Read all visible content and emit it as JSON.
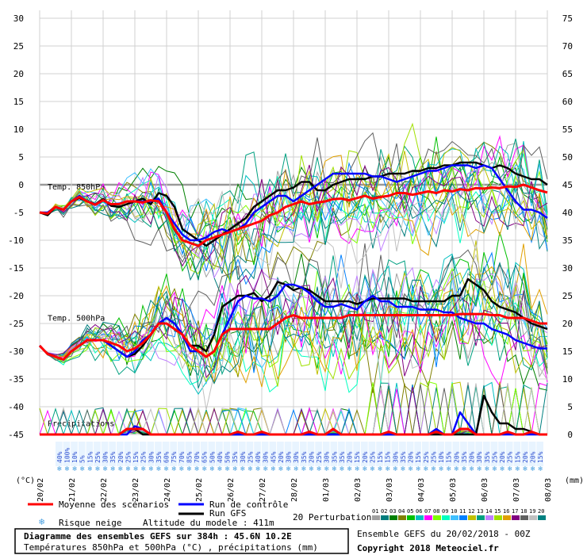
{
  "chart_data": {
    "type": "line",
    "title": "Diagramme des ensembles GEFS sur 384h : 45.6N 10.2E",
    "subtitle": "Températures 850hPa et 500hPa (°C) , précipitations (mm)",
    "x_dates": [
      "20/02",
      "21/02",
      "22/02",
      "23/02",
      "24/02",
      "25/02",
      "26/02",
      "27/02",
      "28/02",
      "01/03",
      "02/03",
      "03/03",
      "04/03",
      "05/03",
      "06/03",
      "07/03",
      "08/03"
    ],
    "left_axis": {
      "unit": "(°C)",
      "ticks": [
        30,
        25,
        20,
        15,
        10,
        5,
        0,
        -5,
        -10,
        -15,
        -20,
        -25,
        -30,
        -35,
        -40,
        -45
      ],
      "range": [
        -45,
        30
      ]
    },
    "right_axis": {
      "unit": "(mm)",
      "ticks": [
        75,
        70,
        65,
        60,
        55,
        50,
        45,
        40,
        35,
        30,
        25,
        20,
        15,
        10,
        5,
        0
      ],
      "range": [
        0,
        75
      ]
    },
    "section_labels": {
      "t850": "Temp. 850hPa",
      "t500": "Temp. 500hPa",
      "precip": "Précipitations"
    },
    "x_hours_step": 6,
    "series": [
      {
        "name": "Moyenne des scénarios",
        "color": "#ff0000",
        "t850": [
          -5,
          -5.2,
          -4,
          -4.5,
          -3,
          -2.2,
          -3,
          -3.6,
          -2.8,
          -3.5,
          -3.5,
          -3,
          -3,
          -3.2,
          -2.8,
          -3,
          -5,
          -8,
          -10,
          -10.5,
          -11,
          -10,
          -9.5,
          -9,
          -8.5,
          -8,
          -7.5,
          -7,
          -6.5,
          -5.5,
          -5,
          -4,
          -3.5,
          -3,
          -3.5,
          -3.2,
          -3,
          -2.6,
          -2.5,
          -2.8,
          -2.4,
          -2,
          -2.5,
          -2.2,
          -2,
          -1.5,
          -1.5,
          -1.8,
          -1.5,
          -1.2,
          -1.5,
          -1,
          -1.2,
          -0.8,
          -1,
          -0.6,
          -0.7,
          -0.5,
          -0.6,
          -0.3,
          -0.4,
          0,
          -0.5,
          -1,
          -1.4
        ],
        "t500": [
          -29,
          -30.5,
          -31,
          -31.5,
          -30,
          -29,
          -28,
          -28,
          -28,
          -28.5,
          -29,
          -30,
          -29.5,
          -28.5,
          -27,
          -25,
          -25,
          -26,
          -27,
          -29,
          -30,
          -31,
          -30,
          -27,
          -26,
          -26,
          -26,
          -26,
          -26,
          -26,
          -25,
          -24,
          -23.5,
          -24,
          -24,
          -24,
          -24,
          -24,
          -24,
          -23.5,
          -23.5,
          -23.5,
          -23.5,
          -23.5,
          -23.5,
          -23.5,
          -23.5,
          -23.5,
          -23.5,
          -23.5,
          -23.5,
          -23.5,
          -23.5,
          -23.3,
          -23.3,
          -23.3,
          -23.3,
          -23.5,
          -23.5,
          -24,
          -24,
          -24,
          -24.5,
          -25,
          -25
        ],
        "precip": [
          0,
          0,
          0,
          0,
          0,
          0,
          0,
          0,
          0,
          0,
          0,
          1,
          1,
          1,
          0,
          0,
          0,
          0,
          0,
          0,
          0,
          0,
          0,
          0,
          0,
          0.5,
          0,
          0,
          0.5,
          0,
          0,
          0,
          0,
          0,
          0.5,
          0,
          0,
          1,
          0,
          0,
          0,
          0,
          0,
          0,
          0.5,
          0,
          0,
          0,
          0,
          0,
          0.5,
          0,
          0,
          1,
          1,
          0,
          0,
          0,
          0,
          0.5,
          0,
          0,
          0.5,
          0,
          0
        ]
      },
      {
        "name": "Run de contrôle",
        "color": "#0000ff",
        "t850": [
          -5,
          -5,
          -4,
          -4.5,
          -3,
          -2,
          -3,
          -3.5,
          -2.8,
          -3.5,
          -3.4,
          -3,
          -3,
          -3,
          -3,
          -2.5,
          -5,
          -7,
          -9,
          -10,
          -10,
          -9.5,
          -8.5,
          -8,
          -8.5,
          -8,
          -7,
          -5,
          -4,
          -3,
          -2,
          -2,
          -3,
          -2,
          -1,
          0,
          1,
          2,
          2,
          2,
          2,
          2,
          1.5,
          1.5,
          1,
          0.5,
          1,
          1.5,
          2,
          2.5,
          2.5,
          3,
          3.5,
          3.5,
          3.5,
          3,
          3.5,
          3,
          1,
          -1,
          -3,
          -4.5,
          -4.5,
          -5,
          -6
        ],
        "t500": [
          -29,
          -30.5,
          -31,
          -31.5,
          -30,
          -29,
          -28,
          -28,
          -28,
          -29,
          -30,
          -31,
          -30,
          -28,
          -27,
          -25,
          -24,
          -25,
          -27,
          -30,
          -30,
          -31,
          -30,
          -27,
          -24,
          -21,
          -20,
          -20.5,
          -20.5,
          -21,
          -20,
          -18,
          -18,
          -18.5,
          -19.5,
          -21,
          -22,
          -22,
          -21.5,
          -22,
          -22.5,
          -21,
          -20,
          -21,
          -21,
          -22,
          -22,
          -22,
          -22.5,
          -22.5,
          -22.5,
          -23,
          -23,
          -24,
          -24.5,
          -25,
          -25,
          -26,
          -26.5,
          -27,
          -28,
          -28.5,
          -29,
          -29.5,
          -29.5
        ],
        "precip": [
          0,
          0,
          0,
          0,
          0,
          0,
          0,
          0,
          0,
          0,
          0,
          0,
          1.5,
          1,
          0,
          0,
          0,
          0,
          0,
          0,
          0,
          0,
          0,
          0,
          0,
          0,
          0,
          0,
          0,
          0,
          0,
          0,
          0,
          0,
          0,
          0,
          0,
          0,
          0,
          0,
          0,
          0,
          0,
          0,
          0,
          0,
          0,
          0,
          0,
          0,
          1,
          0,
          0,
          4,
          2,
          0,
          0,
          0,
          0,
          0,
          0,
          0,
          0,
          0,
          0
        ]
      },
      {
        "name": "Run GFS",
        "color": "#000000",
        "t850": [
          -5,
          -5.5,
          -4,
          -4.5,
          -3,
          -2.4,
          -3,
          -3.5,
          -2.6,
          -3.8,
          -4,
          -3.5,
          -3,
          -2.5,
          -3.5,
          -1.5,
          -2,
          -4,
          -8,
          -9,
          -10,
          -11,
          -10,
          -9,
          -8,
          -7,
          -6,
          -4,
          -3,
          -2,
          -1,
          -1,
          -0.5,
          0.5,
          0.5,
          -1,
          -1,
          0,
          0.5,
          1,
          1,
          1,
          1.5,
          1.5,
          2,
          2,
          2,
          2.5,
          2.5,
          3,
          3,
          3.5,
          3.5,
          4,
          4,
          4,
          3.5,
          3,
          3.5,
          3,
          2,
          1.5,
          1,
          1,
          0
        ],
        "t500": [
          -29,
          -30.5,
          -31,
          -31.5,
          -30,
          -29,
          -28,
          -28,
          -28,
          -29,
          -30,
          -31,
          -30.5,
          -29,
          -27,
          -25,
          -24,
          -25,
          -27,
          -29,
          -29,
          -30,
          -27,
          -22,
          -21,
          -20,
          -20,
          -19.5,
          -21,
          -20,
          -17.5,
          -18,
          -19,
          -18.5,
          -19,
          -20,
          -21,
          -21,
          -21,
          -21,
          -21.5,
          -21,
          -20.5,
          -20.5,
          -20.5,
          -20.5,
          -20.5,
          -21,
          -21,
          -21,
          -21,
          -21,
          -20,
          -20,
          -17,
          -18,
          -19,
          -21,
          -22,
          -22.5,
          -23,
          -24,
          -25,
          -25.5,
          -26
        ],
        "precip": [
          0,
          0,
          0,
          0,
          0,
          0,
          0,
          0,
          0,
          0,
          0,
          1,
          1,
          0,
          0,
          0,
          0,
          0,
          0,
          0,
          0,
          0,
          0,
          0,
          0,
          0,
          0,
          0,
          0,
          0,
          0,
          0,
          0,
          0,
          0,
          0,
          0,
          0,
          0,
          0,
          0,
          0,
          0,
          0,
          0,
          0,
          0,
          0,
          0,
          0,
          0,
          0,
          0,
          0,
          0,
          0,
          7,
          4,
          2,
          2,
          1,
          1,
          0.5,
          0,
          0
        ]
      }
    ],
    "perturbations": {
      "count": 20,
      "labels": [
        "01",
        "02",
        "03",
        "04",
        "05",
        "06",
        "07",
        "08",
        "09",
        "10",
        "11",
        "12",
        "13",
        "14",
        "15",
        "16",
        "17",
        "18",
        "19",
        "20"
      ],
      "colors": [
        "#a0a0a0",
        "#007c7c",
        "#008000",
        "#808000",
        "#00c000",
        "#00c0c0",
        "#ff00ff",
        "#80ff00",
        "#00ffc0",
        "#40c0ff",
        "#0080ff",
        "#c0c000",
        "#00a080",
        "#c080ff",
        "#a0e000",
        "#e0a000",
        "#800080",
        "#606060",
        "#c0c0c0",
        "#008080"
      ]
    },
    "snow_risk_percent": [
      "40%",
      "100%",
      "10%",
      "5%",
      "15%",
      "25%",
      "30%",
      "35%",
      "20%",
      "25%",
      "15%",
      "25%",
      "30%",
      "35%",
      "60%",
      "75%",
      "70%",
      "85%",
      "70%",
      "65%",
      "50%",
      "40%",
      "50%",
      "35%",
      "30%",
      "25%",
      "40%",
      "30%",
      "45%",
      "20%",
      "30%",
      "30%",
      "35%",
      "20%",
      "25%",
      "30%",
      "35%",
      "35%",
      "20%",
      "15%",
      "20%",
      "25%",
      "15%",
      "15%",
      "30%",
      "35%",
      "20%",
      "15%",
      "25%",
      "25%",
      "10%",
      "15%",
      "20%",
      "35%",
      "20%",
      "30%",
      "35%",
      "25%",
      "20%",
      "25%",
      "15%",
      "20%",
      "20%",
      "15%"
    ]
  },
  "legend": {
    "mean": "Moyenne des scénarios",
    "control": "Run de contrôle",
    "gfs": "Run GFS",
    "perturbations": "20 Perturbations",
    "snow_risk": "Risque neige",
    "altitude": "Altitude du modele : 411m"
  },
  "footer": {
    "title": "Diagramme des ensembles GEFS sur 384h : 45.6N 10.2E",
    "subtitle": "Températures 850hPa et 500hPa (°C) , précipitations (mm)",
    "ensemble": "Ensemble GEFS du 20/02/2018 - 00Z",
    "copyright": "Copyright 2018 Meteociel.fr"
  }
}
